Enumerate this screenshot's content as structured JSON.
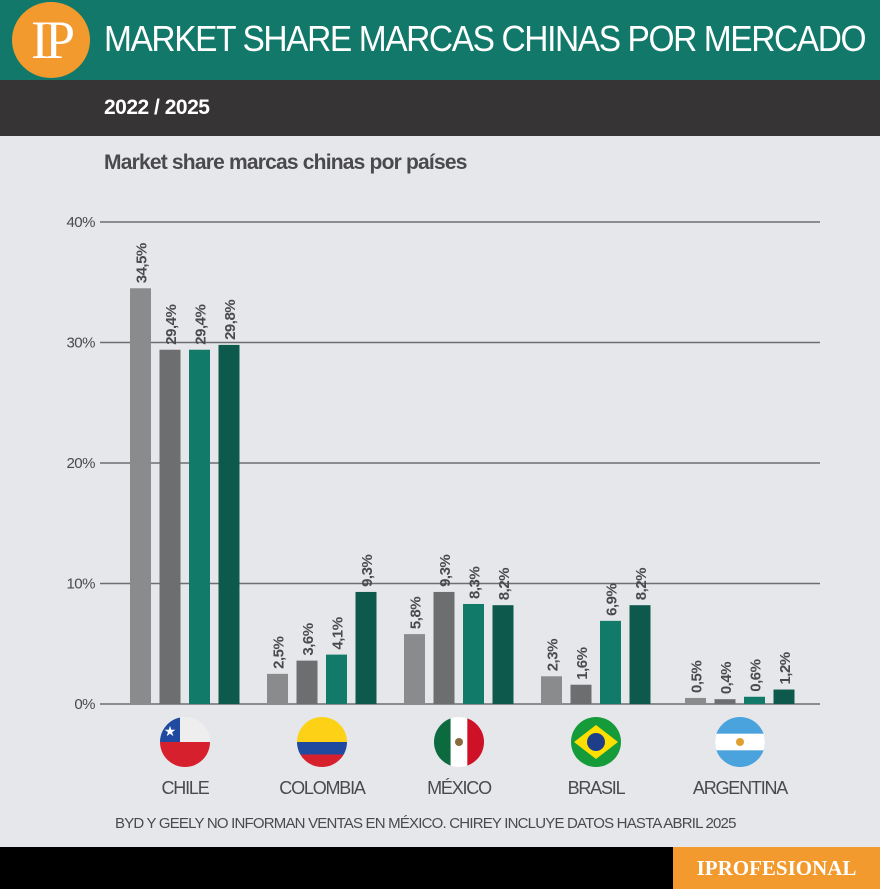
{
  "header": {
    "logo": "IP",
    "title": "MARKET SHARE MARCAS CHINAS POR MERCADO",
    "period": "2022 / 2025"
  },
  "chart_data": {
    "type": "bar",
    "title": "Market share marcas chinas por países",
    "categories": [
      "CHILE",
      "COLOMBIA",
      "MÉXICO",
      "BRASIL",
      "ARGENTINA"
    ],
    "series": [
      {
        "values": [
          34.5,
          2.5,
          5.8,
          2.3,
          0.5
        ],
        "labels": [
          "34,5%",
          "2,5%",
          "5,8%",
          "2,3%",
          "0,5%"
        ],
        "color": "#898b8d"
      },
      {
        "values": [
          29.4,
          3.6,
          9.3,
          1.6,
          0.4
        ],
        "labels": [
          "29,4%",
          "3,6%",
          "9,3%",
          "1,6%",
          "0,4%"
        ],
        "color": "#6d6e70"
      },
      {
        "values": [
          29.4,
          4.1,
          8.3,
          6.9,
          0.6
        ],
        "labels": [
          "29,4%",
          "4,1%",
          "8,3%",
          "6,9%",
          "0,6%"
        ],
        "color": "#127a68"
      },
      {
        "values": [
          29.8,
          9.3,
          8.2,
          8.2,
          1.2
        ],
        "labels": [
          "29,8%",
          "9,3%",
          "8,2%",
          "8,2%",
          "1,2%"
        ],
        "color": "#0d5a4c"
      }
    ],
    "ylim": [
      0,
      40
    ],
    "yticks": [
      0,
      10,
      20,
      30,
      40
    ],
    "ytick_labels": [
      "0%",
      "10%",
      "20%",
      "30%",
      "40%"
    ],
    "grid": true,
    "flags": [
      "chile-flag",
      "colombia-flag",
      "mexico-flag",
      "brazil-flag",
      "argentina-flag"
    ]
  },
  "note": "BYD Y GEELY NO INFORMAN VENTAS EN MÉXICO. CHIREY INCLUYE DATOS HASTA ABRIL 2025",
  "footer": {
    "brand": "IPROFESIONAL"
  }
}
